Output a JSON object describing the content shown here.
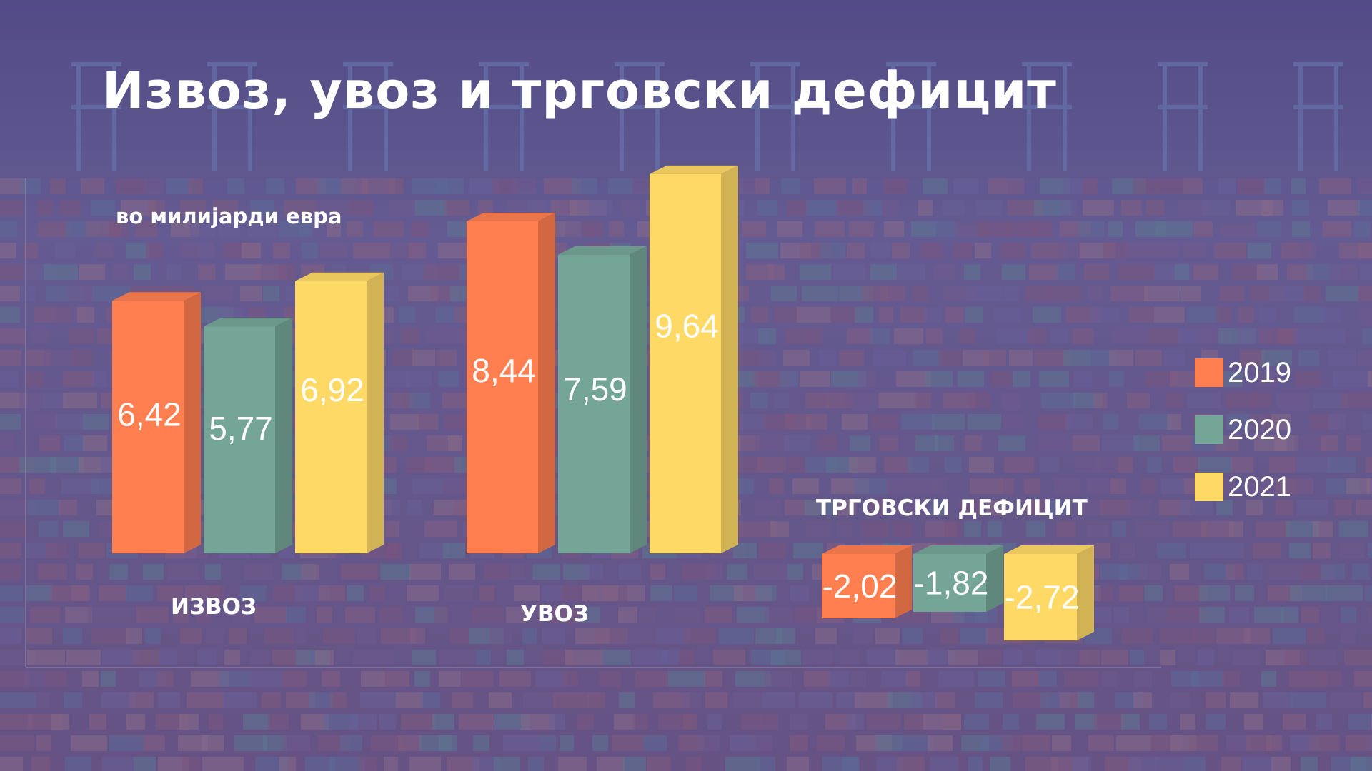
{
  "title": "Извоз, увоз и трговски дефицит",
  "subtitle": "во милијарди евра",
  "colors": {
    "2019": "#FF7F50",
    "2020": "#74A596",
    "2021": "#FFD966",
    "background": "#6a5a8e"
  },
  "chart_data": [
    {
      "type": "bar",
      "categories": [
        "ИЗВОЗ",
        "УВОЗ"
      ],
      "series": [
        {
          "name": "2019",
          "values": [
            6.42,
            8.44
          ],
          "labels": [
            "6,42",
            "8,44"
          ]
        },
        {
          "name": "2020",
          "values": [
            5.77,
            7.59
          ],
          "labels": [
            "5,77",
            "7,59"
          ]
        },
        {
          "name": "2021",
          "values": [
            6.92,
            9.64
          ],
          "labels": [
            "6,92",
            "9,64"
          ]
        }
      ],
      "ylim": [
        0,
        10
      ],
      "legend": "right"
    },
    {
      "type": "bar",
      "title": "ТРГОВСКИ ДЕФИЦИТ",
      "categories": [
        "2019",
        "2020",
        "2021"
      ],
      "values": [
        -2.02,
        -1.82,
        -2.72
      ],
      "labels": [
        "-2,02",
        "-1,82",
        "-2,72"
      ]
    }
  ],
  "legend": [
    {
      "label": "2019",
      "color": "#FF7F50"
    },
    {
      "label": "2020",
      "color": "#74A596"
    },
    {
      "label": "2021",
      "color": "#FFD966"
    }
  ]
}
